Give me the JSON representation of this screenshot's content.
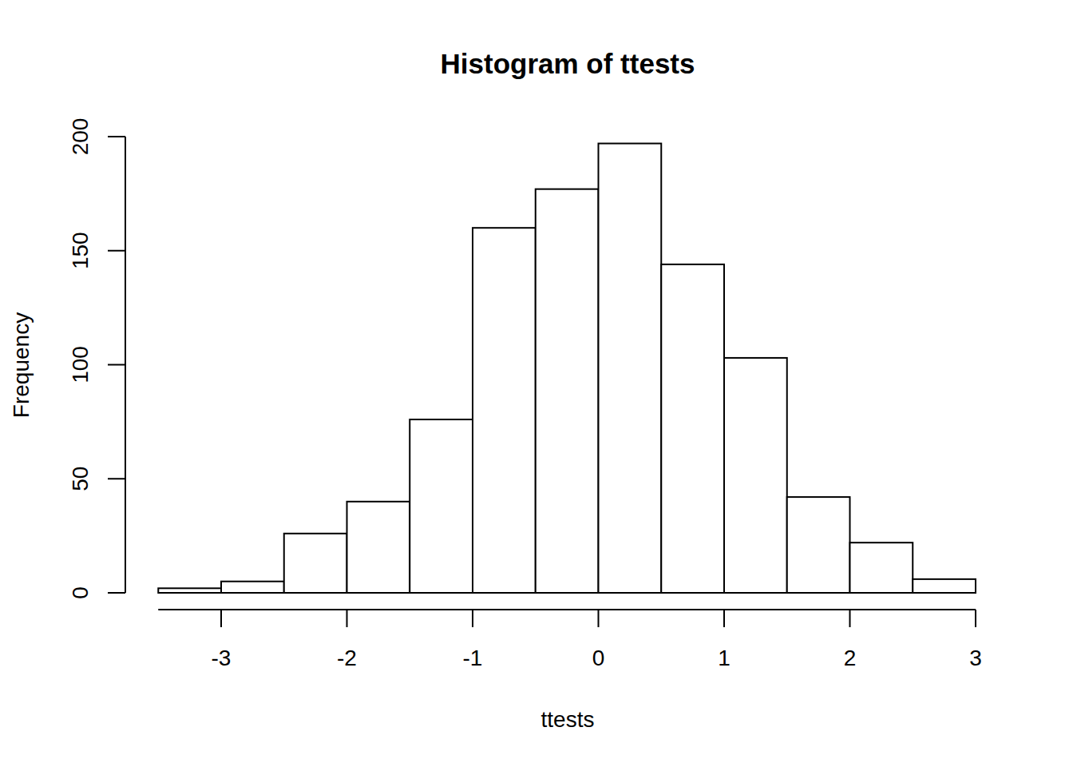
{
  "chart_data": {
    "type": "histogram",
    "title": "Histogram of ttests",
    "x_label": "ttests",
    "y_label": "Frequency",
    "bins": [
      -3.5,
      -3,
      -2.5,
      -2,
      -1.5,
      -1,
      -0.5,
      0,
      0.5,
      1,
      1.5,
      2,
      2.5,
      3
    ],
    "counts": [
      2,
      5,
      26,
      40,
      76,
      160,
      177,
      197,
      144,
      103,
      42,
      22,
      6
    ],
    "color": "#ffffff",
    "xlim": [
      -3.5,
      3
    ],
    "xticks": [
      -3,
      -2,
      -1,
      0,
      1,
      2,
      3
    ],
    "ylim": [
      0,
      200
    ],
    "yticks": [
      0,
      50,
      100,
      150,
      200
    ]
  }
}
